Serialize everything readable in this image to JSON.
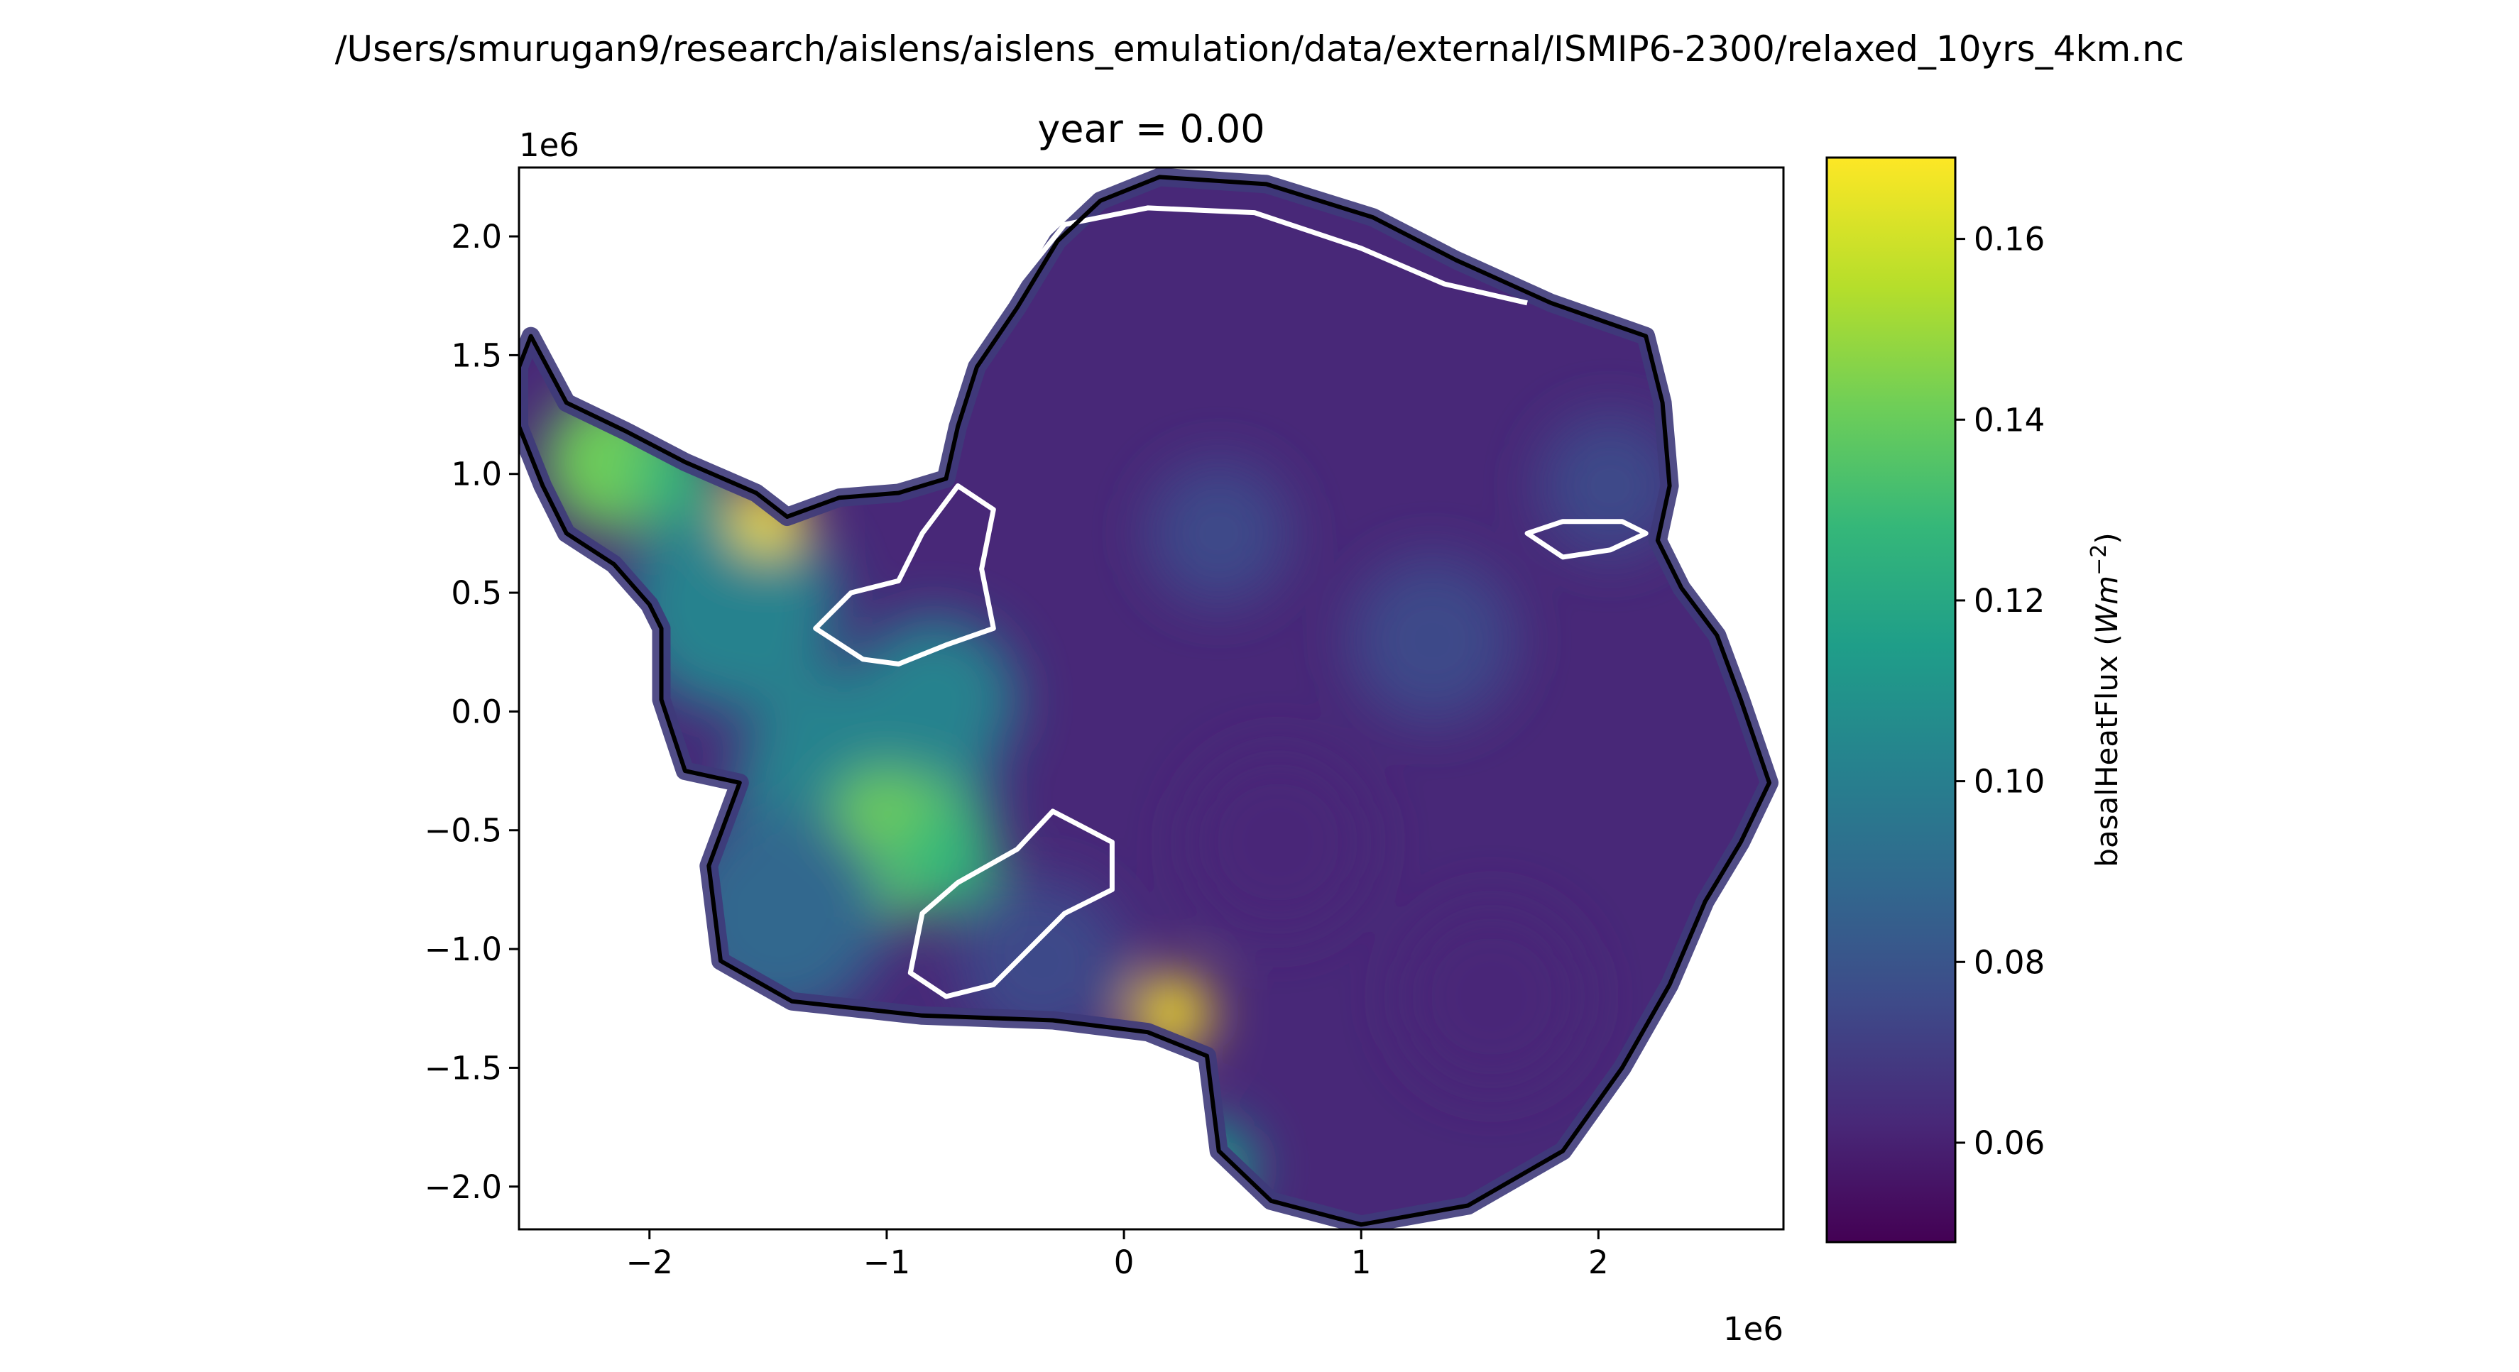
{
  "figure": {
    "suptitle": "/Users/smurugan9/research/aislens/aislens_emulation/data/external/ISMIP6-2300/relaxed_10yrs_4km.nc"
  },
  "chart_data": {
    "type": "heatmap",
    "title": "year = 0.00",
    "variable": "basalHeatFlux",
    "xlabel": "",
    "ylabel": "",
    "x_offset_text": "1e6",
    "y_offset_text": "1e6",
    "xlim": [
      -2.55,
      2.78
    ],
    "ylim": [
      -2.18,
      2.29
    ],
    "x_ticks": [
      -2,
      -1,
      0,
      1,
      2
    ],
    "x_tick_labels": [
      "−2",
      "−1",
      "0",
      "1",
      "2"
    ],
    "y_ticks": [
      2.0,
      1.5,
      1.0,
      0.5,
      0.0,
      -0.5,
      -1.0,
      -1.5,
      -2.0
    ],
    "y_tick_labels": [
      "2.0",
      "1.5",
      "1.0",
      "0.5",
      "0.0",
      "−0.5",
      "−1.0",
      "−1.5",
      "−2.0"
    ],
    "colorbar": {
      "label": "basalHeatFlux (Wm⁻²)",
      "label_main": "basalHeatFlux (",
      "label_unit": "Wm",
      "label_exp": "−2",
      "label_close": ")",
      "range": [
        0.049,
        0.169
      ],
      "ticks": [
        0.06,
        0.08,
        0.1,
        0.12,
        0.14,
        0.16
      ],
      "tick_labels": [
        "0.06",
        "0.08",
        "0.10",
        "0.12",
        "0.14",
        "0.16"
      ],
      "colormap": "viridis"
    },
    "overlays": [
      {
        "name": "grounding line",
        "color": "#ffffff"
      },
      {
        "name": "calving front",
        "color": "#000000"
      }
    ],
    "colors": {
      "viridis": [
        "#440154",
        "#482878",
        "#3e4a89",
        "#31688e",
        "#26828e",
        "#1f9e89",
        "#35b779",
        "#6ece58",
        "#b5de2b",
        "#fde725"
      ]
    },
    "field_background_value": 0.058,
    "field_hotspots": [
      {
        "x": -1.1,
        "y": -0.35,
        "r": 0.55,
        "value": 0.105
      },
      {
        "x": -0.95,
        "y": -0.55,
        "r": 0.32,
        "value": 0.145
      },
      {
        "x": -0.75,
        "y": -0.62,
        "r": 0.22,
        "value": 0.13
      },
      {
        "x": -0.8,
        "y": 0.05,
        "r": 0.35,
        "value": 0.1
      },
      {
        "x": -1.65,
        "y": 0.45,
        "r": 0.45,
        "value": 0.1
      },
      {
        "x": -2.15,
        "y": 1.05,
        "r": 0.3,
        "value": 0.14
      },
      {
        "x": -1.9,
        "y": 1.0,
        "r": 0.18,
        "value": 0.13
      },
      {
        "x": -1.5,
        "y": 0.82,
        "r": 0.15,
        "value": 0.165
      },
      {
        "x": -1.45,
        "y": -0.85,
        "r": 0.45,
        "value": 0.085
      },
      {
        "x": -0.35,
        "y": -1.05,
        "r": 0.35,
        "value": 0.08
      },
      {
        "x": 0.2,
        "y": -1.27,
        "r": 0.16,
        "value": 0.165
      },
      {
        "x": 0.35,
        "y": -1.92,
        "r": 0.2,
        "value": 0.12
      },
      {
        "x": 2.05,
        "y": 0.95,
        "r": 0.3,
        "value": 0.08
      },
      {
        "x": 1.3,
        "y": 0.3,
        "r": 0.35,
        "value": 0.072
      },
      {
        "x": 0.4,
        "y": 0.75,
        "r": 0.3,
        "value": 0.07
      },
      {
        "x": 1.55,
        "y": -1.2,
        "r": 0.4,
        "value": 0.066
      },
      {
        "x": 0.65,
        "y": -0.55,
        "r": 0.4,
        "value": 0.064
      }
    ],
    "coastline": [
      [
        -2.5,
        1.58
      ],
      [
        -2.35,
        1.3
      ],
      [
        -2.1,
        1.18
      ],
      [
        -1.85,
        1.05
      ],
      [
        -1.55,
        0.92
      ],
      [
        -1.42,
        0.82
      ],
      [
        -1.2,
        0.9
      ],
      [
        -0.95,
        0.92
      ],
      [
        -0.75,
        0.98
      ],
      [
        -0.7,
        1.2
      ],
      [
        -0.62,
        1.45
      ],
      [
        -0.45,
        1.7
      ],
      [
        -0.28,
        1.98
      ],
      [
        -0.1,
        2.15
      ],
      [
        0.15,
        2.25
      ],
      [
        0.6,
        2.22
      ],
      [
        1.05,
        2.08
      ],
      [
        1.4,
        1.9
      ],
      [
        1.8,
        1.72
      ],
      [
        2.2,
        1.58
      ],
      [
        2.27,
        1.3
      ],
      [
        2.3,
        0.95
      ],
      [
        2.25,
        0.72
      ],
      [
        2.35,
        0.52
      ],
      [
        2.5,
        0.32
      ],
      [
        2.6,
        0.05
      ],
      [
        2.72,
        -0.3
      ],
      [
        2.6,
        -0.55
      ],
      [
        2.45,
        -0.8
      ],
      [
        2.3,
        -1.15
      ],
      [
        2.1,
        -1.5
      ],
      [
        1.85,
        -1.85
      ],
      [
        1.45,
        -2.08
      ],
      [
        1.0,
        -2.16
      ],
      [
        0.62,
        -2.06
      ],
      [
        0.4,
        -1.85
      ],
      [
        0.35,
        -1.45
      ],
      [
        0.1,
        -1.35
      ],
      [
        -0.3,
        -1.3
      ],
      [
        -0.85,
        -1.28
      ],
      [
        -1.4,
        -1.22
      ],
      [
        -1.7,
        -1.05
      ],
      [
        -1.75,
        -0.65
      ],
      [
        -1.62,
        -0.3
      ],
      [
        -1.85,
        -0.25
      ],
      [
        -1.95,
        0.05
      ],
      [
        -1.95,
        0.35
      ],
      [
        -2.0,
        0.45
      ],
      [
        -2.15,
        0.62
      ],
      [
        -2.35,
        0.75
      ],
      [
        -2.45,
        0.95
      ],
      [
        -2.55,
        1.2
      ],
      [
        -2.55,
        1.45
      ]
    ],
    "grounding_lines": [
      [
        [
          -1.3,
          0.35
        ],
        [
          -1.15,
          0.5
        ],
        [
          -0.95,
          0.55
        ],
        [
          -0.85,
          0.75
        ],
        [
          -0.7,
          0.95
        ],
        [
          -0.55,
          0.85
        ],
        [
          -0.6,
          0.6
        ],
        [
          -0.55,
          0.35
        ],
        [
          -0.75,
          0.28
        ],
        [
          -0.95,
          0.2
        ],
        [
          -1.1,
          0.22
        ],
        [
          -1.3,
          0.35
        ]
      ],
      [
        [
          -0.3,
          -0.42
        ],
        [
          -0.05,
          -0.55
        ],
        [
          -0.05,
          -0.75
        ],
        [
          -0.25,
          -0.85
        ],
        [
          -0.45,
          -1.05
        ],
        [
          -0.55,
          -1.15
        ],
        [
          -0.75,
          -1.2
        ],
        [
          -0.9,
          -1.1
        ],
        [
          -0.85,
          -0.85
        ],
        [
          -0.7,
          -0.72
        ],
        [
          -0.45,
          -0.58
        ],
        [
          -0.3,
          -0.42
        ]
      ],
      [
        [
          1.7,
          0.75
        ],
        [
          1.85,
          0.8
        ],
        [
          2.1,
          0.8
        ],
        [
          2.2,
          0.75
        ],
        [
          2.05,
          0.68
        ],
        [
          1.85,
          0.65
        ],
        [
          1.7,
          0.75
        ]
      ],
      [
        [
          -0.45,
          1.8
        ],
        [
          -0.25,
          2.05
        ],
        [
          0.1,
          2.12
        ],
        [
          0.55,
          2.1
        ],
        [
          1.0,
          1.95
        ],
        [
          1.35,
          1.8
        ],
        [
          1.7,
          1.72
        ]
      ]
    ]
  }
}
